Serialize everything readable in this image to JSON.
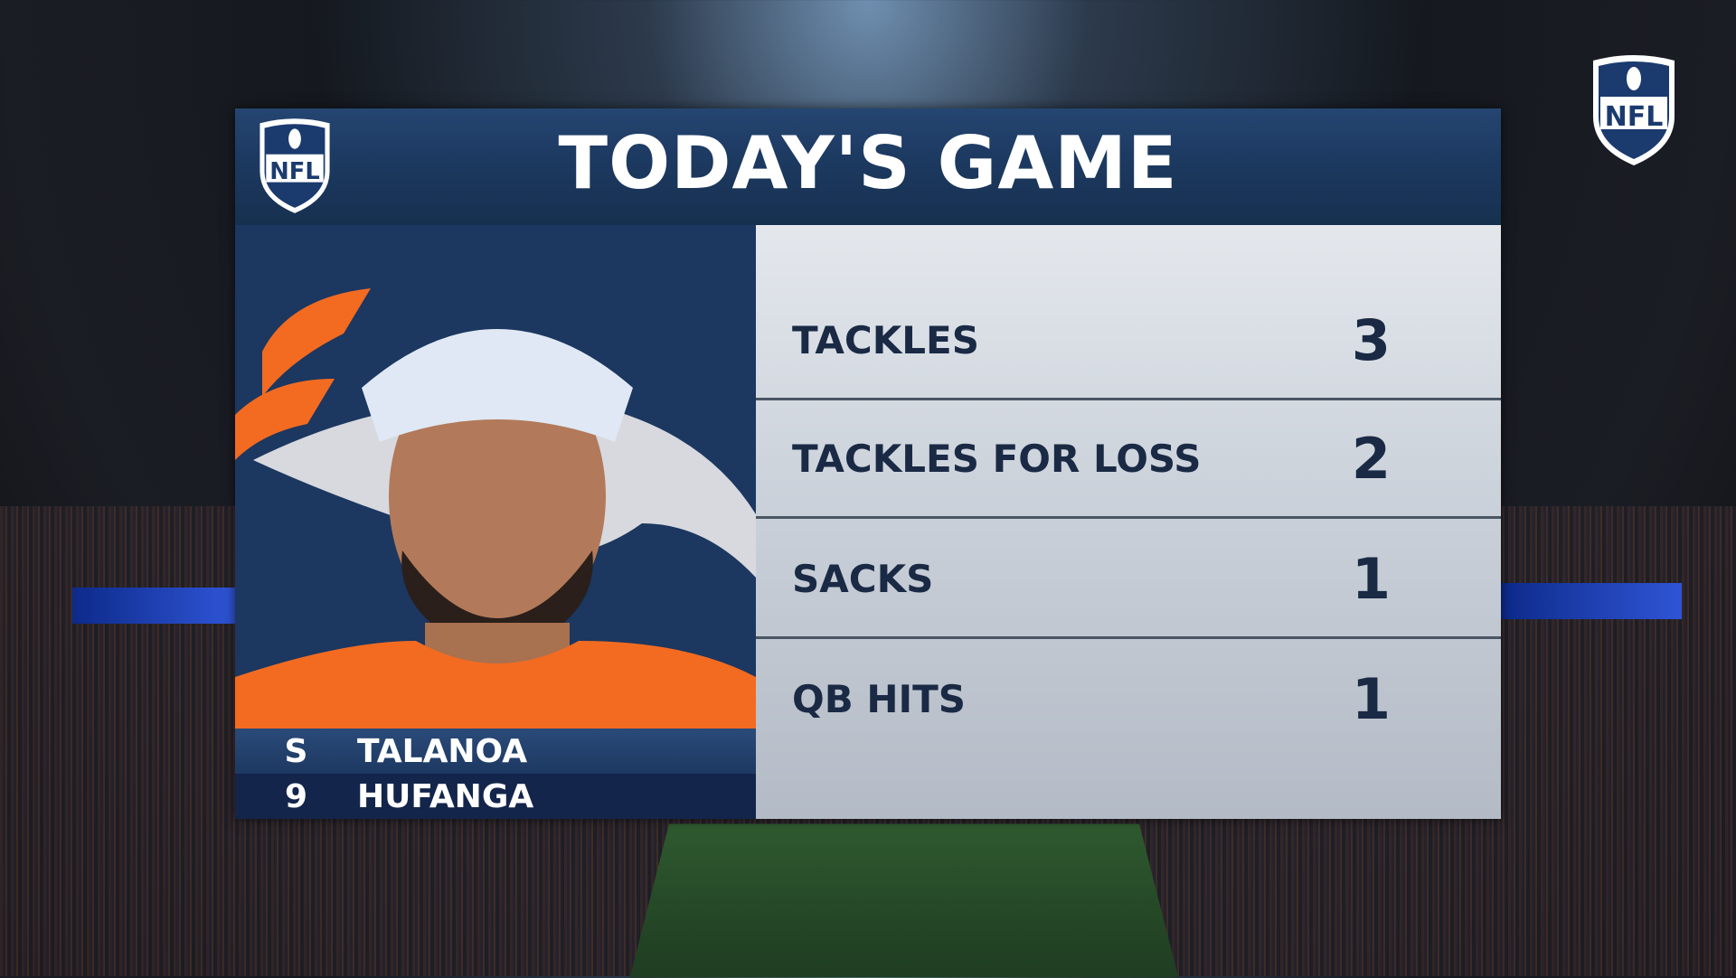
{
  "header": {
    "title": "TODAY'S GAME",
    "logo": "nfl-shield-icon"
  },
  "corner_logo": "nfl-shield-icon",
  "player": {
    "position": "S",
    "number": "9",
    "first_name": "TALANOA",
    "last_name": "HUFANGA",
    "team_logo": "broncos-horse-icon"
  },
  "stats": [
    {
      "label": "TACKLES",
      "value": "3"
    },
    {
      "label": "TACKLES FOR LOSS",
      "value": "2"
    },
    {
      "label": "SACKS",
      "value": "1"
    },
    {
      "label": "QB HITS",
      "value": "1"
    }
  ],
  "colors": {
    "navy": "#1b3558",
    "orange": "#f26b21",
    "stat_text": "#1a2a45"
  }
}
